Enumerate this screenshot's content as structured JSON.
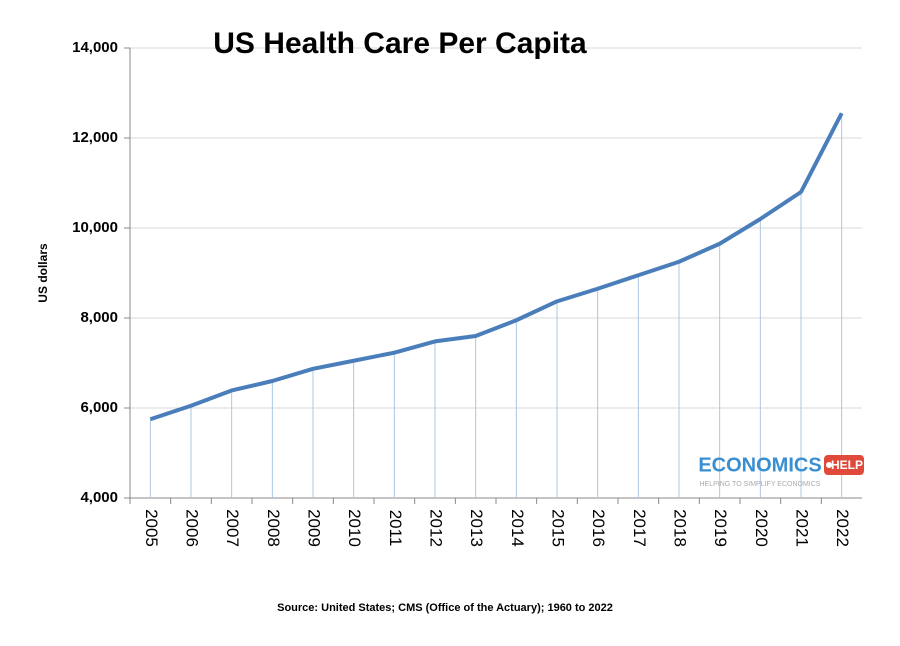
{
  "chart_data": {
    "type": "line",
    "title": "US Health Care Per Capita",
    "y_label": "US dollars",
    "source": "Source: United States; CMS (Office of the Actuary); 1960 to 2022",
    "categories": [
      "2005",
      "2006",
      "2007",
      "2008",
      "2009",
      "2010",
      "2011",
      "2012",
      "2013",
      "2014",
      "2015",
      "2016",
      "2017",
      "2018",
      "2019",
      "2020",
      "2021",
      "2022"
    ],
    "values": [
      5750,
      6050,
      6390,
      6600,
      6870,
      7050,
      7230,
      7480,
      7600,
      7950,
      8370,
      8650,
      8950,
      9250,
      9650,
      10200,
      10800,
      12550
    ],
    "color": "#4a7ebb",
    "ylim": [
      4000,
      14000
    ],
    "yticks": [
      {
        "value": 4000,
        "label": "4,000"
      },
      {
        "value": 6000,
        "label": "6,000"
      },
      {
        "value": 8000,
        "label": "8,000"
      },
      {
        "value": 10000,
        "label": "10,000"
      },
      {
        "value": 12000,
        "label": "12,000"
      },
      {
        "value": 14000,
        "label": "14,000"
      }
    ],
    "grid": true
  },
  "logo": {
    "name": "ECONOMICS",
    "tag": "HELP",
    "tagline": "HELPING TO SIMPLIFY ECONOMICS"
  }
}
